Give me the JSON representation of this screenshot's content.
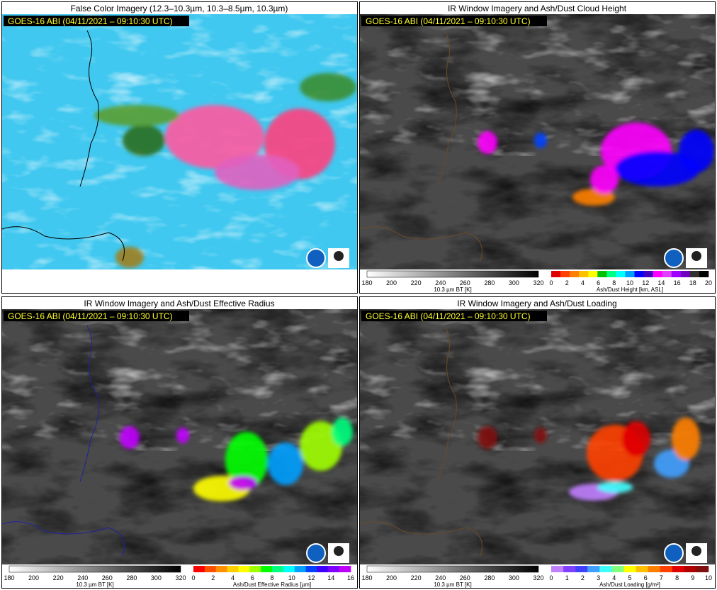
{
  "panels": [
    {
      "title": "False Color Imagery (12.3–10.3µm, 10.3–8.5µm, 10.3µm)",
      "timestamp": "GOES-16 ABI (04/11/2021 – 09:10:30 UTC)",
      "colorbars": []
    },
    {
      "title": "IR Window Imagery and Ash/Dust Cloud Height",
      "timestamp": "GOES-16 ABI (04/11/2021 – 09:10:30 UTC)",
      "colorbars": [
        {
          "label": "10.3 µm BT [K]",
          "ticks": [
            180,
            200,
            220,
            240,
            260,
            280,
            300,
            320
          ]
        },
        {
          "label": "Ash/Dust Height [km, ASL]",
          "ticks": [
            0,
            2,
            4,
            6,
            8,
            10,
            12,
            14,
            16,
            18,
            20
          ]
        }
      ]
    },
    {
      "title": "IR Window Imagery and Ash/Dust Effective Radius",
      "timestamp": "GOES-16 ABI (04/11/2021 – 09:10:30 UTC)",
      "colorbars": [
        {
          "label": "10.3 µm BT [K]",
          "ticks": [
            180,
            200,
            220,
            240,
            260,
            280,
            300,
            320
          ]
        },
        {
          "label": "Ash/Dust Effective Radius [µm]",
          "ticks": [
            0,
            2,
            4,
            6,
            8,
            10,
            12,
            14,
            16
          ]
        }
      ]
    },
    {
      "title": "IR Window Imagery and Ash/Dust Loading",
      "timestamp": "GOES-16 ABI (04/11/2021 – 09:10:30 UTC)",
      "colorbars": [
        {
          "label": "10.3 µm BT [K]",
          "ticks": [
            180,
            200,
            220,
            240,
            260,
            280,
            300,
            320
          ]
        },
        {
          "label": "Ash/Dust Loading [g/m²]",
          "ticks": [
            0,
            1,
            2,
            3,
            4,
            5,
            6,
            7,
            8,
            9,
            10
          ]
        }
      ]
    }
  ]
}
